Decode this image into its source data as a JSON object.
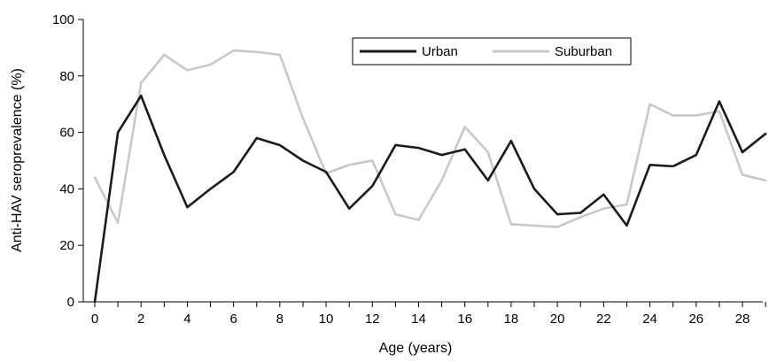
{
  "chart_data": {
    "type": "line",
    "xlabel": "Age (years)",
    "ylabel": "Anti-HAV seroprevalence (%)",
    "xlim": [
      0,
      29
    ],
    "ylim": [
      0,
      100
    ],
    "x_ticks": [
      0,
      2,
      4,
      6,
      8,
      10,
      12,
      14,
      16,
      18,
      20,
      22,
      24,
      26,
      28
    ],
    "y_ticks": [
      0,
      20,
      40,
      60,
      80,
      100
    ],
    "grid": false,
    "legend_position": "top-center",
    "x": [
      0,
      1,
      2,
      3,
      4,
      5,
      6,
      7,
      8,
      9,
      10,
      11,
      12,
      13,
      14,
      15,
      16,
      17,
      18,
      19,
      20,
      21,
      22,
      23,
      24,
      25,
      26,
      27,
      28,
      29
    ],
    "series": [
      {
        "name": "Urban",
        "color": "#1a1a1a",
        "values": [
          0,
          60,
          73,
          52,
          33.5,
          40,
          46,
          58,
          55.5,
          50,
          46,
          33,
          41,
          55.5,
          54.5,
          52,
          54,
          43,
          57,
          40,
          31,
          31.5,
          38,
          27,
          48.5,
          48,
          52,
          71,
          53,
          59.5
        ]
      },
      {
        "name": "Suburban",
        "color": "#c8c8c8",
        "values": [
          44,
          28,
          77.5,
          87.5,
          82,
          84,
          89,
          88.5,
          87.5,
          65,
          45.5,
          48.5,
          50,
          31,
          29,
          43,
          62,
          53,
          27.5,
          27,
          26.5,
          30,
          33,
          34.5,
          70,
          66,
          66,
          67.5,
          45,
          43
        ]
      }
    ]
  }
}
